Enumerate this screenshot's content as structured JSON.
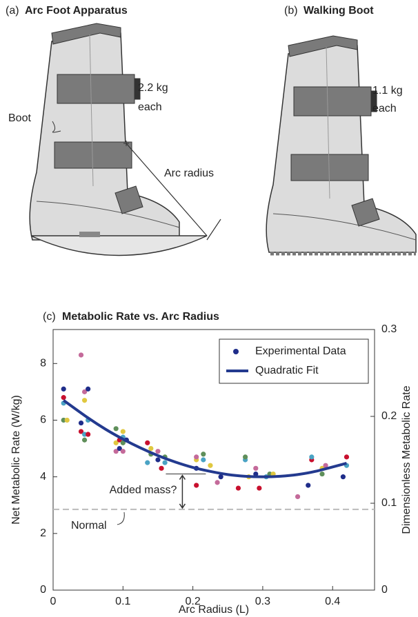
{
  "panel_a": {
    "label": "(a)",
    "title": "Arc Foot Apparatus",
    "mass_lines": [
      "2.2 kg",
      "each"
    ],
    "boot_label": "Boot",
    "radius_label": "Arc radius"
  },
  "panel_b": {
    "label": "(b)",
    "title": "Walking Boot",
    "mass_lines": [
      "1.1 kg",
      "each"
    ]
  },
  "chart_data": {
    "type": "scatter",
    "panel_label": "(c)",
    "title": "Metabolic Rate vs. Arc Radius",
    "x_label": "Arc Radius (L)",
    "y_label": "Net Metabolic Rate (W/kg)",
    "y2_label": "Dimensionless Metabolic Rate",
    "xlim": [
      0,
      0.46
    ],
    "xticks": [
      0,
      0.1,
      0.2,
      0.3,
      0.4
    ],
    "ylim": [
      0,
      9.2
    ],
    "yticks": [
      0,
      2,
      4,
      6,
      8
    ],
    "y2lim": [
      0,
      0.3
    ],
    "y2ticks": [
      0,
      0.1,
      0.2,
      0.3
    ],
    "legend": "upper right",
    "point_palette": [
      "#1f2d8a",
      "#c8102e",
      "#4aa3c4",
      "#5f8f5a",
      "#e0c840",
      "#c46a9a"
    ],
    "series": [
      {
        "name": "Experimental Data",
        "color": "#1f2d8a",
        "kind": "points",
        "x": [
          0.015,
          0.015,
          0.015,
          0.015,
          0.02,
          0.04,
          0.04,
          0.04,
          0.045,
          0.045,
          0.045,
          0.045,
          0.05,
          0.05,
          0.05,
          0.09,
          0.09,
          0.09,
          0.095,
          0.095,
          0.1,
          0.1,
          0.1,
          0.1,
          0.105,
          0.135,
          0.135,
          0.14,
          0.14,
          0.15,
          0.15,
          0.155,
          0.16,
          0.16,
          0.205,
          0.205,
          0.205,
          0.205,
          0.215,
          0.215,
          0.225,
          0.235,
          0.24,
          0.265,
          0.275,
          0.275,
          0.28,
          0.29,
          0.29,
          0.295,
          0.305,
          0.31,
          0.315,
          0.35,
          0.365,
          0.37,
          0.37,
          0.385,
          0.385,
          0.39,
          0.415,
          0.42,
          0.42
        ],
        "values": [
          7.1,
          6.8,
          6.6,
          6.0,
          6.0,
          8.3,
          5.9,
          5.6,
          5.5,
          5.3,
          6.7,
          7.0,
          7.1,
          5.5,
          6.0,
          5.7,
          5.2,
          4.9,
          5.0,
          5.3,
          5.4,
          5.2,
          5.6,
          4.9,
          5.3,
          5.2,
          4.5,
          4.8,
          5.0,
          4.9,
          4.6,
          4.3,
          4.5,
          4.7,
          4.6,
          4.7,
          4.3,
          3.7,
          4.6,
          4.8,
          4.4,
          3.8,
          4.0,
          3.6,
          4.6,
          4.7,
          4.0,
          4.3,
          4.1,
          3.6,
          4.0,
          4.1,
          4.1,
          3.3,
          3.7,
          4.6,
          4.7,
          4.1,
          4.3,
          4.4,
          4.0,
          4.7,
          4.4
        ]
      },
      {
        "name": "Quadratic Fit",
        "color": "#233a8f",
        "kind": "line",
        "x": [
          0.015,
          0.05,
          0.075,
          0.1,
          0.125,
          0.15,
          0.175,
          0.2,
          0.225,
          0.25,
          0.275,
          0.3,
          0.325,
          0.35,
          0.375,
          0.42
        ],
        "values": [
          6.7,
          6.08,
          5.68,
          5.33,
          5.02,
          4.75,
          4.52,
          4.33,
          4.19,
          4.08,
          4.02,
          4.0,
          4.02,
          4.08,
          4.19,
          4.48
        ]
      }
    ],
    "reference_line": {
      "label": "Normal",
      "value": 2.85,
      "color": "#bbbbbb"
    },
    "gap_annotation": {
      "label": "Added mass?",
      "x": 0.185,
      "from": 2.85,
      "to": 4.1
    }
  }
}
